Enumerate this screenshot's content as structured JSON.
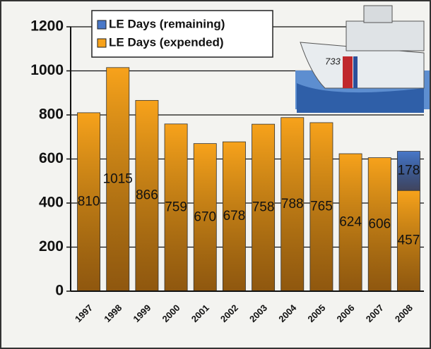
{
  "chart_data": {
    "type": "stacked_bar",
    "categories": [
      "1997",
      "1998",
      "1999",
      "2000",
      "2001",
      "2002",
      "2003",
      "2004",
      "2005",
      "2006",
      "2007",
      "2008"
    ],
    "series": [
      {
        "name": "LE Days (expended)",
        "color": "#f7a21b",
        "values": [
          810,
          1015,
          866,
          759,
          670,
          678,
          758,
          788,
          765,
          624,
          606,
          457
        ]
      },
      {
        "name": "LE Days (remaining)",
        "color": "#4a78c8",
        "values": [
          null,
          null,
          null,
          null,
          null,
          null,
          null,
          null,
          null,
          null,
          null,
          178
        ]
      }
    ],
    "ylim": [
      0,
      1200
    ],
    "yticks": [
      0,
      200,
      400,
      600,
      800,
      1000,
      1200
    ],
    "grid": true,
    "legend": "top-left",
    "image_label": "733"
  }
}
